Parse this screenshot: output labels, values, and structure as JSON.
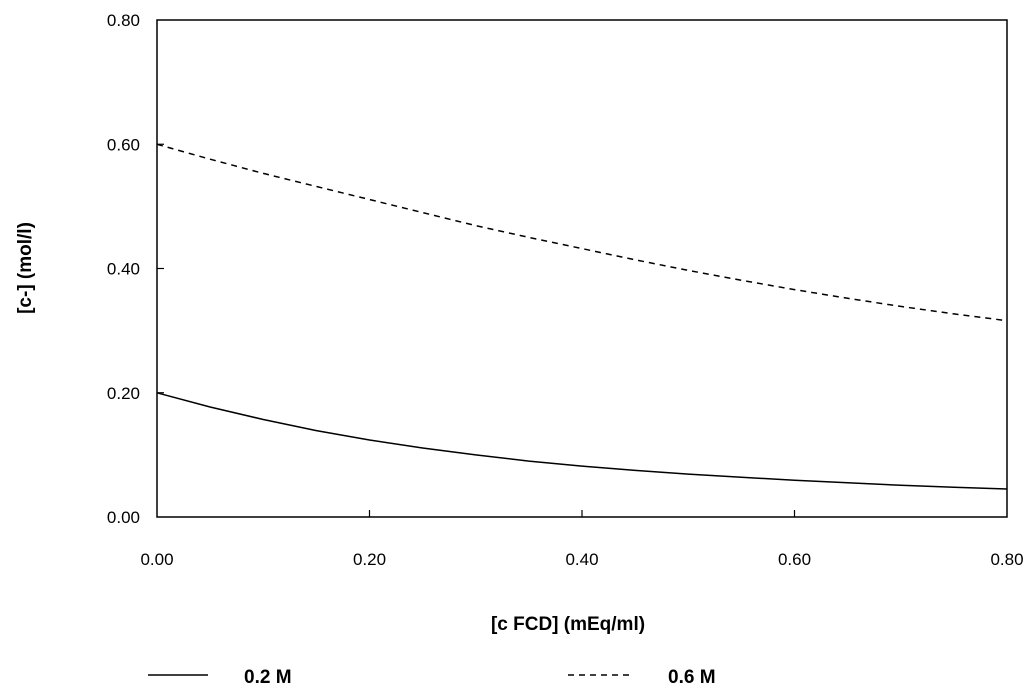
{
  "chart_data": {
    "type": "line",
    "title": "",
    "xlabel": "[c FCD] (mEq/ml)",
    "ylabel": "[c-] (mol/l)",
    "xlim": [
      0,
      0.8
    ],
    "ylim": [
      0,
      0.8
    ],
    "x_ticks": [
      "0.00",
      "0.20",
      "0.40",
      "0.60",
      "0.80"
    ],
    "y_ticks": [
      "0.00",
      "0.20",
      "0.40",
      "0.60",
      "0.80"
    ],
    "grid": false,
    "legend_position": "bottom",
    "series": [
      {
        "name": "0.2 M",
        "style": "solid",
        "color": "#000000",
        "x": [
          0.0,
          0.05,
          0.1,
          0.15,
          0.2,
          0.25,
          0.3,
          0.35,
          0.4,
          0.45,
          0.5,
          0.55,
          0.6,
          0.65,
          0.7,
          0.75,
          0.8
        ],
        "y": [
          0.2,
          0.177,
          0.157,
          0.139,
          0.124,
          0.111,
          0.1,
          0.09,
          0.082,
          0.075,
          0.069,
          0.064,
          0.059,
          0.055,
          0.051,
          0.048,
          0.045
        ]
      },
      {
        "name": "0.6 M",
        "style": "dashed",
        "color": "#000000",
        "x": [
          0.0,
          0.05,
          0.1,
          0.15,
          0.2,
          0.25,
          0.3,
          0.35,
          0.4,
          0.45,
          0.5,
          0.55,
          0.6,
          0.65,
          0.7,
          0.75,
          0.8
        ],
        "y": [
          0.6,
          0.576,
          0.553,
          0.532,
          0.511,
          0.49,
          0.469,
          0.45,
          0.432,
          0.414,
          0.397,
          0.381,
          0.366,
          0.352,
          0.339,
          0.327,
          0.316
        ]
      }
    ]
  }
}
